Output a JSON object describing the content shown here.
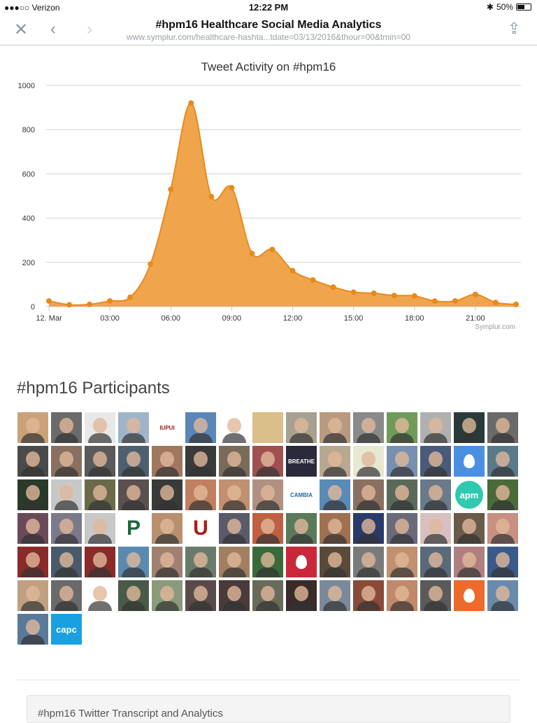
{
  "status": {
    "carrier": "●●●○○ Verizon",
    "time": "12:22 PM",
    "battery": "50%",
    "battery_level": 0.5
  },
  "browser": {
    "title": "#hpm16 Healthcare Social Media Analytics",
    "url": "www.symplur.com/healthcare-hashta...tdate=03/13/2016&thour=00&tmin=00"
  },
  "chart_data": {
    "type": "area",
    "title": "Tweet Activity on #hpm16",
    "credit": "Symplur.com",
    "color": "#f0a54c",
    "line_color": "#e8891c",
    "x_hours": [
      0,
      1,
      2,
      3,
      4,
      5,
      6,
      7,
      8,
      9,
      10,
      11,
      12,
      13,
      14,
      15,
      16,
      17,
      18,
      19,
      20,
      21,
      22,
      23
    ],
    "values": [
      25,
      8,
      10,
      25,
      42,
      192,
      530,
      920,
      497,
      537,
      240,
      258,
      162,
      120,
      88,
      65,
      60,
      50,
      48,
      25,
      25,
      55,
      18,
      10
    ],
    "x_ticks": [
      {
        "h": 0,
        "label": "12. Mar"
      },
      {
        "h": 3,
        "label": "03:00"
      },
      {
        "h": 6,
        "label": "06:00"
      },
      {
        "h": 9,
        "label": "09:00"
      },
      {
        "h": 12,
        "label": "12:00"
      },
      {
        "h": 15,
        "label": "15:00"
      },
      {
        "h": 18,
        "label": "18:00"
      },
      {
        "h": 21,
        "label": "21:00"
      }
    ],
    "y_ticks": [
      "0",
      "200",
      "400",
      "600",
      "800",
      "1000"
    ],
    "ylim": [
      0,
      1000
    ],
    "grid": true
  },
  "participants": {
    "title": "#hpm16 Participants",
    "tiles": [
      "#c9a27a",
      "#6b6b6b",
      "#e8e8e8",
      "#9fb4c8",
      {
        "label": "IUPUI",
        "bg": "#ffffff",
        "fg": "#9d1c20"
      },
      "#5a86b8",
      "#ffffff",
      {
        "label": "",
        "bg": "#d9c08a"
      },
      "#a8a090",
      "#b79a80",
      "#8a8a8a",
      "#6f9a5a",
      "#b0b0b0",
      "#2a3a3a",
      "#6a6a6a",
      "#4a4a4a",
      "#8a7060",
      "#5a5a5a",
      "#4d6070",
      "#a07860",
      "#3a3a3a",
      "#7a6a5a",
      "#a05050",
      {
        "label": "BREATHE",
        "bg": "#2a2a3a",
        "fg": "#ffffff"
      },
      "#b8a890",
      "#e8e8d0",
      "#7890b0",
      "#4a5a7a",
      {
        "egg": true,
        "bg": "#4a90e2"
      },
      "#5a7a8a",
      "#2a3a2a",
      "#c8c8c8",
      "#6a6a4a",
      "#5a5050",
      "#3a3a3a",
      "#c08060",
      "#c09070",
      "#b09080",
      {
        "label": "CAMBIA",
        "bg": "#ffffff",
        "fg": "#1a6a9a"
      },
      "#5a8ab8",
      "#8a7060",
      "#5a6a5a",
      "#6a7a8a",
      {
        "label": "apm",
        "bg": "#2fc8b0",
        "fg": "#ffffff",
        "round": true
      },
      "#4a6a3a",
      "#6a4a5a",
      "#7a7a8a",
      "#c8c8c8",
      {
        "label": "P",
        "bg": "#ffffff",
        "fg": "#1a6a3a"
      },
      "#b89070",
      {
        "label": "U",
        "bg": "#ffffff",
        "fg": "#b01818"
      },
      "#5a5a6a",
      "#c06040",
      "#5a7a5a",
      "#a07050",
      "#2a3a6a",
      "#6a6a7a",
      "#d8c0c0",
      "#6a5a4a",
      "#c89080",
      "#8a2a2a",
      "#4a5a6a",
      "#8a2a2a",
      "#5a8ab0",
      "#a08070",
      "#6a7a6a",
      "#a08060",
      "#3a6a3a",
      {
        "egg": true,
        "bg": "#c8283a"
      },
      "#5a4a3a",
      "#7a7a7a",
      "#c09070",
      "#5a6a7a",
      "#b08080",
      "#3a5a8a",
      "#c0a080",
      "#6a6a6a",
      "#ffffff",
      "#4a5a4a",
      "#8a9a7a",
      "#5a4a4a",
      "#4a3a3a",
      "#6a6a5a",
      "#3a2a2a",
      "#7a8a9a",
      "#8a4a3a",
      "#c08a6a",
      "#5a5a5a",
      {
        "egg": true,
        "bg": "#ee6a2a"
      },
      "#6a8aaa",
      "#5a7a9a",
      {
        "label": "capc",
        "bg": "#1aa0e0",
        "fg": "#ffffff"
      }
    ]
  },
  "footer": {
    "panel_title": "#hpm16 Twitter Transcript and Analytics"
  }
}
